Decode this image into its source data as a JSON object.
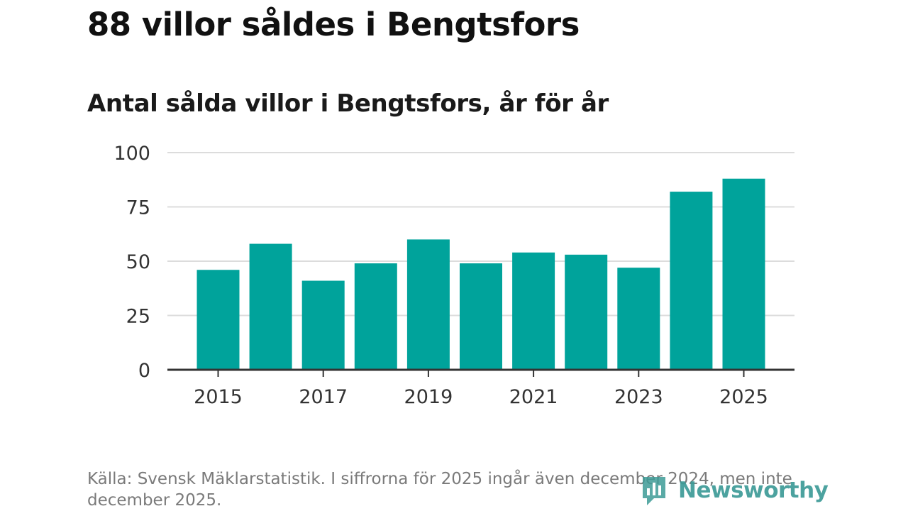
{
  "headline": "88 villor såldes i Bengtsfors",
  "chart_data": {
    "type": "bar",
    "title": "Antal sålda villor i Bengtsfors, år för år",
    "categories": [
      "2015",
      "2016",
      "2017",
      "2018",
      "2019",
      "2020",
      "2021",
      "2022",
      "2023",
      "2024",
      "2025"
    ],
    "values": [
      46,
      58,
      41,
      49,
      60,
      49,
      54,
      53,
      47,
      82,
      88
    ],
    "x_tick_labels": [
      "2015",
      "2017",
      "2019",
      "2021",
      "2023",
      "2025"
    ],
    "y_ticks": [
      0,
      25,
      50,
      75,
      100
    ],
    "ylim": [
      0,
      100
    ],
    "xlabel": "",
    "ylabel": "",
    "grid": true,
    "bar_color": "#00a39b"
  },
  "source": "Källa: Svensk Mäklarstatistik. I siffrorna för 2025 ingår även december 2024, men inte december 2025.",
  "brand": {
    "name": "Newsworthy",
    "icon": "newsworthy-logo-icon",
    "color": "#3d9b97"
  }
}
